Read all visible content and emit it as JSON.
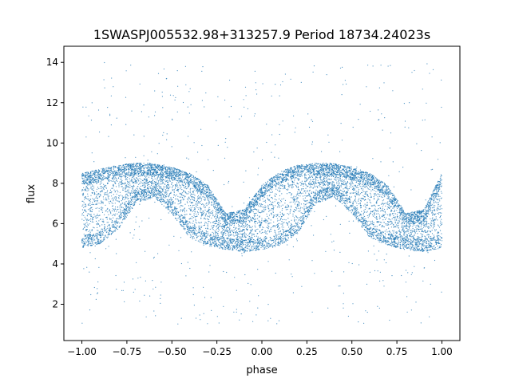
{
  "chart_data": {
    "type": "scatter",
    "title": "1SWASPJ005532.98+313257.9 Period 18734.24023s",
    "xlabel": "phase",
    "ylabel": "flux",
    "xlim": [
      -1.1,
      1.1
    ],
    "ylim": [
      0.2,
      14.8
    ],
    "xticks": [
      -1.0,
      -0.75,
      -0.5,
      -0.25,
      0.0,
      0.25,
      0.5,
      0.75,
      1.0
    ],
    "xtick_labels": [
      "−1.00",
      "−0.75",
      "−0.50",
      "−0.25",
      "0.00",
      "0.25",
      "0.50",
      "0.75",
      "1.00"
    ],
    "yticks": [
      2,
      4,
      6,
      8,
      10,
      12,
      14
    ],
    "ytick_labels": [
      "2",
      "4",
      "6",
      "8",
      "10",
      "12",
      "14"
    ],
    "grid": false,
    "legend": "none",
    "marker_color": "#1f77b4",
    "series": [
      {
        "values": [
          {
            "x": -1.0,
            "lower": 4.8,
            "upper": 8.5
          },
          {
            "x": -0.9,
            "lower": 5.0,
            "upper": 8.7
          },
          {
            "x": -0.8,
            "lower": 5.7,
            "upper": 8.9
          },
          {
            "x": -0.7,
            "lower": 7.0,
            "upper": 9.0
          },
          {
            "x": -0.6,
            "lower": 7.3,
            "upper": 9.0
          },
          {
            "x": -0.5,
            "lower": 6.5,
            "upper": 8.8
          },
          {
            "x": -0.4,
            "lower": 5.3,
            "upper": 8.5
          },
          {
            "x": -0.3,
            "lower": 4.9,
            "upper": 7.9
          },
          {
            "x": -0.2,
            "lower": 4.7,
            "upper": 6.5
          },
          {
            "x": -0.1,
            "lower": 4.6,
            "upper": 6.7
          },
          {
            "x": 0.0,
            "lower": 4.7,
            "upper": 7.9
          },
          {
            "x": 0.1,
            "lower": 4.9,
            "upper": 8.6
          },
          {
            "x": 0.2,
            "lower": 5.5,
            "upper": 8.9
          },
          {
            "x": 0.3,
            "lower": 7.0,
            "upper": 9.0
          },
          {
            "x": 0.4,
            "lower": 7.3,
            "upper": 9.0
          },
          {
            "x": 0.5,
            "lower": 6.5,
            "upper": 8.8
          },
          {
            "x": 0.6,
            "lower": 5.3,
            "upper": 8.5
          },
          {
            "x": 0.7,
            "lower": 4.9,
            "upper": 7.9
          },
          {
            "x": 0.8,
            "lower": 4.7,
            "upper": 6.5
          },
          {
            "x": 0.9,
            "lower": 4.6,
            "upper": 6.7
          },
          {
            "x": 1.0,
            "lower": 4.8,
            "upper": 8.5
          }
        ]
      }
    ]
  }
}
